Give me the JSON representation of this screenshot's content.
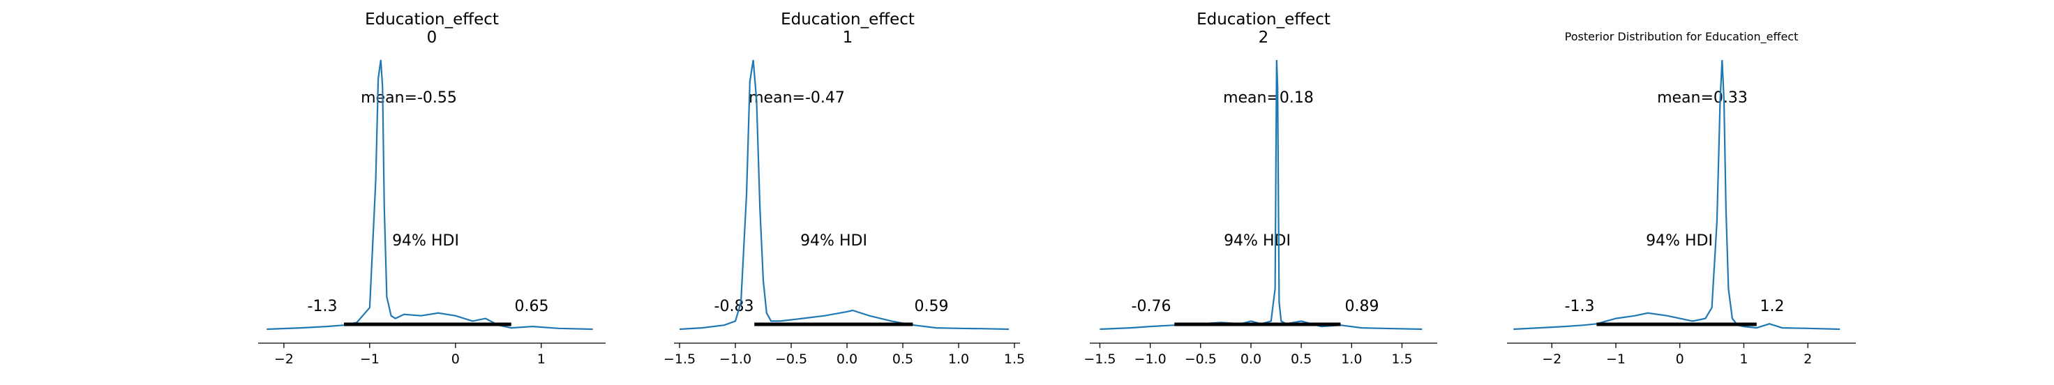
{
  "chart_data": [
    {
      "type": "line",
      "subtype": "posterior-density",
      "title": "Education_effect",
      "subtitle": "0",
      "mean_label": "mean=-0.55",
      "hdi_label": "94% HDI",
      "hdi_low_label": "-1.3",
      "hdi_high_label": "0.65",
      "hdi": [
        -1.3,
        0.65
      ],
      "xlim": [
        -2.3,
        1.75
      ],
      "xticks": [
        -2,
        -1,
        0,
        1
      ],
      "xtick_labels": [
        "−2",
        "−1",
        "0",
        "1"
      ],
      "density": {
        "x": [
          -2.2,
          -1.8,
          -1.5,
          -1.3,
          -1.15,
          -1.0,
          -0.93,
          -0.9,
          -0.87,
          -0.85,
          -0.83,
          -0.8,
          -0.75,
          -0.7,
          -0.6,
          -0.4,
          -0.2,
          0.0,
          0.2,
          0.35,
          0.5,
          0.65,
          0.9,
          1.2,
          1.6
        ],
        "y": [
          0.0,
          0.005,
          0.01,
          0.015,
          0.025,
          0.08,
          0.55,
          0.93,
          1.0,
          0.9,
          0.45,
          0.12,
          0.05,
          0.04,
          0.055,
          0.05,
          0.06,
          0.05,
          0.03,
          0.04,
          0.015,
          0.005,
          0.01,
          0.003,
          0.0
        ]
      }
    },
    {
      "type": "line",
      "subtype": "posterior-density",
      "title": "Education_effect",
      "subtitle": "1",
      "mean_label": "mean=-0.47",
      "hdi_label": "94% HDI",
      "hdi_low_label": "-0.83",
      "hdi_high_label": "0.59",
      "hdi": [
        -0.83,
        0.59
      ],
      "xlim": [
        -1.55,
        1.55
      ],
      "xticks": [
        -1.5,
        -1.0,
        -0.5,
        0.0,
        0.5,
        1.0,
        1.5
      ],
      "xtick_labels": [
        "−1.5",
        "−1.0",
        "−0.5",
        "0.0",
        "0.5",
        "1.0",
        "1.5"
      ],
      "density": {
        "x": [
          -1.5,
          -1.3,
          -1.1,
          -1.0,
          -0.95,
          -0.9,
          -0.87,
          -0.84,
          -0.81,
          -0.78,
          -0.75,
          -0.72,
          -0.68,
          -0.6,
          -0.4,
          -0.2,
          0.0,
          0.05,
          0.2,
          0.4,
          0.6,
          0.8,
          1.0,
          1.2,
          1.45
        ],
        "y": [
          0.0,
          0.005,
          0.015,
          0.03,
          0.1,
          0.5,
          0.92,
          1.0,
          0.85,
          0.45,
          0.18,
          0.06,
          0.03,
          0.03,
          0.04,
          0.05,
          0.065,
          0.07,
          0.05,
          0.03,
          0.015,
          0.005,
          0.003,
          0.002,
          0.0
        ]
      }
    },
    {
      "type": "line",
      "subtype": "posterior-density",
      "title": "Education_effect",
      "subtitle": "2",
      "mean_label": "mean=0.18",
      "hdi_label": "94% HDI",
      "hdi_low_label": "-0.76",
      "hdi_high_label": "0.89",
      "hdi": [
        -0.76,
        0.89
      ],
      "xlim": [
        -1.6,
        1.85
      ],
      "xticks": [
        -1.5,
        -1.0,
        -0.5,
        0.0,
        0.5,
        1.0,
        1.5
      ],
      "xtick_labels": [
        "−1.5",
        "−1.0",
        "−0.5",
        "0.0",
        "0.5",
        "1.0",
        "1.5"
      ],
      "density": {
        "x": [
          -1.5,
          -1.2,
          -1.0,
          -0.76,
          -0.5,
          -0.3,
          -0.1,
          0.0,
          0.1,
          0.2,
          0.24,
          0.255,
          0.265,
          0.28,
          0.3,
          0.35,
          0.5,
          0.7,
          0.89,
          1.1,
          1.3,
          1.7
        ],
        "y": [
          0.0,
          0.005,
          0.01,
          0.015,
          0.02,
          0.025,
          0.02,
          0.03,
          0.02,
          0.03,
          0.15,
          1.0,
          0.9,
          0.1,
          0.03,
          0.02,
          0.03,
          0.01,
          0.015,
          0.005,
          0.003,
          0.0
        ]
      }
    },
    {
      "type": "line",
      "subtype": "posterior-density",
      "title": "Posterior Distribution for Education_effect",
      "subtitle": "",
      "mean_label": "mean=0.33",
      "hdi_label": "94% HDI",
      "hdi_low_label": "-1.3",
      "hdi_high_label": "1.2",
      "hdi": [
        -1.3,
        1.2
      ],
      "xlim": [
        -2.7,
        2.75
      ],
      "xticks": [
        -2,
        -1,
        0,
        1,
        2
      ],
      "xtick_labels": [
        "−2",
        "−1",
        "0",
        "1",
        "2"
      ],
      "density": {
        "x": [
          -2.6,
          -2.2,
          -1.8,
          -1.5,
          -1.3,
          -1.0,
          -0.7,
          -0.5,
          -0.2,
          0.0,
          0.2,
          0.4,
          0.5,
          0.58,
          0.63,
          0.66,
          0.69,
          0.72,
          0.76,
          0.82,
          0.9,
          1.0,
          1.2,
          1.4,
          1.6,
          2.0,
          2.5
        ],
        "y": [
          0.0,
          0.005,
          0.01,
          0.015,
          0.02,
          0.04,
          0.05,
          0.06,
          0.05,
          0.04,
          0.03,
          0.04,
          0.08,
          0.4,
          0.85,
          1.0,
          0.85,
          0.45,
          0.15,
          0.04,
          0.015,
          0.01,
          0.005,
          0.02,
          0.005,
          0.003,
          0.0
        ]
      }
    }
  ]
}
